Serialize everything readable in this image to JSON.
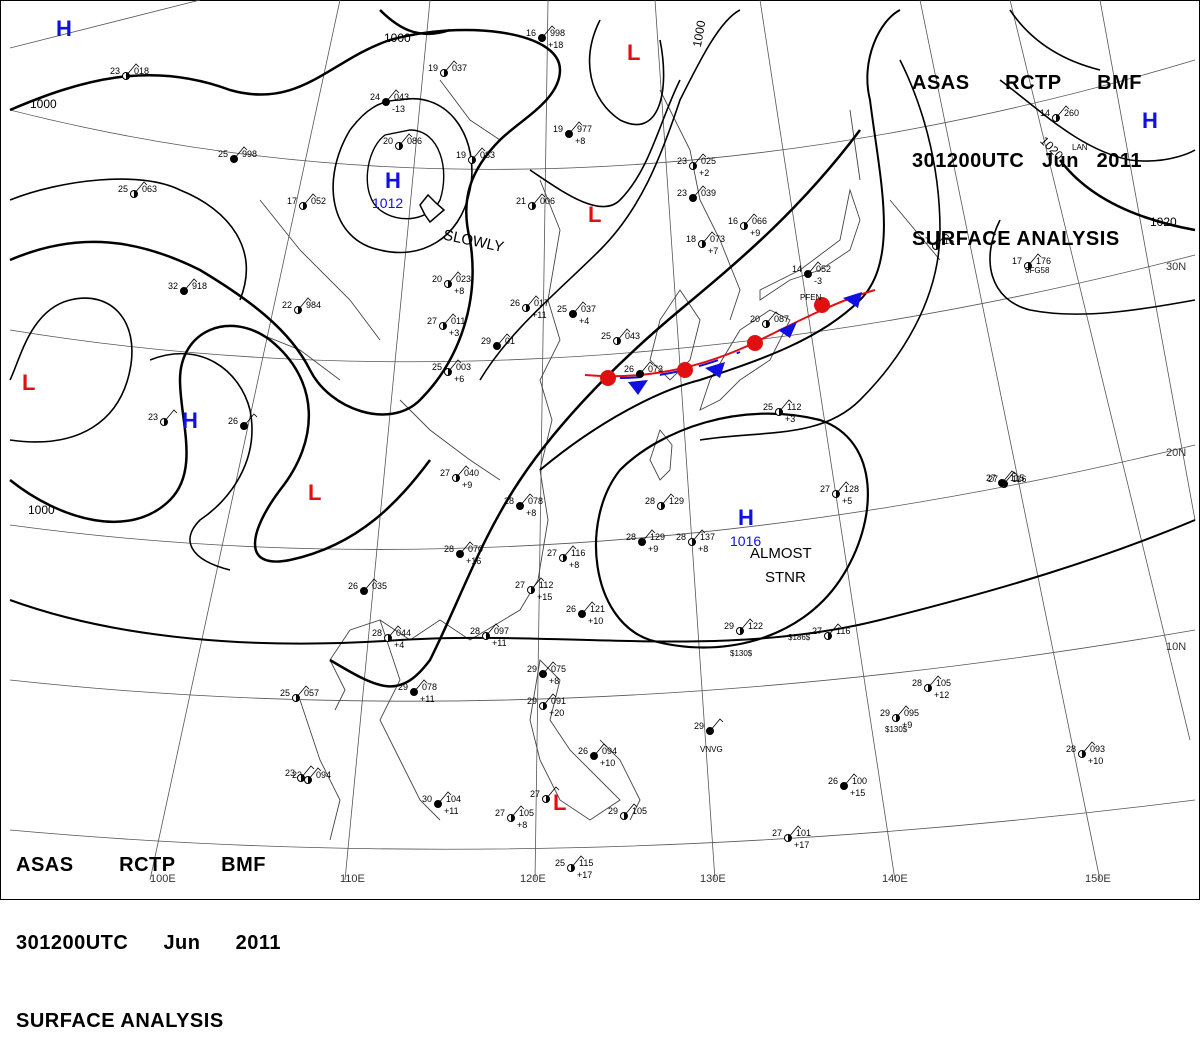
{
  "header": {
    "line1": [
      "ASAS",
      "RCTP",
      "BMF"
    ],
    "line2": [
      "301200UTC",
      "Jun",
      "2011"
    ],
    "line3": "SURFACE ANALYSIS"
  },
  "colors": {
    "high": "#1010e0",
    "low": "#e01010",
    "isobar": "#000000",
    "grid": "#555555"
  },
  "grid": {
    "lon_labels": [
      "110E",
      "120E",
      "130E",
      "140E",
      "150E",
      "100E"
    ],
    "lat_labels": [
      "30N",
      "20N",
      "10N"
    ]
  },
  "pressure_centers": [
    {
      "type": "H",
      "value": "1012"
    },
    {
      "type": "H",
      "value": "1016"
    },
    {
      "type": "H",
      "value": ""
    },
    {
      "type": "H",
      "value": ""
    },
    {
      "type": "H",
      "value": ""
    },
    {
      "type": "L",
      "value": ""
    },
    {
      "type": "L",
      "value": ""
    },
    {
      "type": "L",
      "value": ""
    },
    {
      "type": "L",
      "value": ""
    },
    {
      "type": "L",
      "value": ""
    }
  ],
  "isobar_labels": [
    "1000",
    "1000",
    "1000",
    "1000",
    "1020",
    "1020"
  ],
  "annotations": [
    "SLOWLY",
    "ALMOST",
    "STNR"
  ],
  "stations": [
    {
      "t": "16",
      "p": "998",
      "d": "+18"
    },
    {
      "t": "23",
      "p": "018",
      "d": ""
    },
    {
      "t": "19",
      "p": "037",
      "d": ""
    },
    {
      "t": "24",
      "p": "043",
      "d": "-13"
    },
    {
      "t": "20",
      "p": "086",
      "d": ""
    },
    {
      "t": "19",
      "p": "083",
      "d": ""
    },
    {
      "t": "25",
      "p": "998",
      "d": ""
    },
    {
      "t": "25",
      "p": "063",
      "d": ""
    },
    {
      "t": "17",
      "p": "052",
      "d": ""
    },
    {
      "t": "19",
      "p": "977",
      "d": "+8"
    },
    {
      "t": "21",
      "p": "006",
      "d": ""
    },
    {
      "t": "23",
      "p": "025",
      "d": "+2"
    },
    {
      "t": "23",
      "p": "039",
      "d": ""
    },
    {
      "t": "18",
      "p": "073",
      "d": "+7"
    },
    {
      "t": "16",
      "p": "066",
      "d": "+9"
    },
    {
      "t": "14",
      "p": "052",
      "d": "-3"
    },
    {
      "t": "17",
      "p": "15",
      "d": ""
    },
    {
      "t": "17",
      "p": "176",
      "d": ""
    },
    {
      "t": "32",
      "p": "918",
      "d": ""
    },
    {
      "t": "22",
      "p": "984",
      "d": ""
    },
    {
      "t": "26",
      "p": "017",
      "d": "+11"
    },
    {
      "t": "25",
      "p": "037",
      "d": "+4"
    },
    {
      "t": "20",
      "p": "023",
      "d": "+8"
    },
    {
      "t": "27",
      "p": "011",
      "d": "+3"
    },
    {
      "t": "29",
      "p": "01",
      "d": ""
    },
    {
      "t": "25",
      "p": "043",
      "d": ""
    },
    {
      "t": "25",
      "p": "003",
      "d": "+6"
    },
    {
      "t": "26",
      "p": "073",
      "d": ""
    },
    {
      "t": "20",
      "p": "087",
      "d": ""
    },
    {
      "t": "23",
      "p": "",
      "d": ""
    },
    {
      "t": "26",
      "p": "",
      "d": ""
    },
    {
      "t": "25",
      "p": "112",
      "d": "+3"
    },
    {
      "t": "27",
      "p": "040",
      "d": "+9"
    },
    {
      "t": "28",
      "p": "078",
      "d": "+8"
    },
    {
      "t": "28",
      "p": "129",
      "d": ""
    },
    {
      "t": "28",
      "p": "137",
      "d": "+8"
    },
    {
      "t": "28",
      "p": "129",
      "d": "+9"
    },
    {
      "t": "27",
      "p": "128",
      "d": "+5"
    },
    {
      "t": "27",
      "p": "116",
      "d": ""
    },
    {
      "t": "28",
      "p": "070",
      "d": "+16"
    },
    {
      "t": "27",
      "p": "116",
      "d": "+8"
    },
    {
      "t": "27",
      "p": "112",
      "d": "+15"
    },
    {
      "t": "26",
      "p": "035",
      "d": ""
    },
    {
      "t": "28",
      "p": "044",
      "d": "+4"
    },
    {
      "t": "28",
      "p": "097",
      "d": "+11"
    },
    {
      "t": "26",
      "p": "121",
      "d": "+10"
    },
    {
      "t": "29",
      "p": "122",
      "d": ""
    },
    {
      "t": "27",
      "p": "116",
      "d": ""
    },
    {
      "t": "29",
      "p": "075",
      "d": "+8"
    },
    {
      "t": "29",
      "p": "091",
      "d": "+20"
    },
    {
      "t": "25",
      "p": "057",
      "d": ""
    },
    {
      "t": "29",
      "p": "078",
      "d": "+11"
    },
    {
      "t": "28",
      "p": "105",
      "d": "+12"
    },
    {
      "t": "29",
      "p": "095",
      "d": "+9"
    },
    {
      "t": "29",
      "p": "",
      "d": ""
    },
    {
      "t": "28",
      "p": "093",
      "d": "+10"
    },
    {
      "t": "23",
      "p": "094",
      "d": ""
    },
    {
      "t": "30",
      "p": "104",
      "d": "+11"
    },
    {
      "t": "27",
      "p": "105",
      "d": "+8"
    },
    {
      "t": "27",
      "p": "",
      "d": ""
    },
    {
      "t": "26",
      "p": "100",
      "d": "+15"
    },
    {
      "t": "27",
      "p": "101",
      "d": "+17"
    },
    {
      "t": "25",
      "p": "115",
      "d": "+17"
    },
    {
      "t": "26",
      "p": "094",
      "d": "+10"
    },
    {
      "t": "29",
      "p": "105",
      "d": ""
    },
    {
      "t": "14",
      "p": "260",
      "d": ""
    },
    {
      "t": "27",
      "p": "115",
      "d": ""
    },
    {
      "t": "23",
      "p": "",
      "d": ""
    }
  ],
  "station_codes": [
    "VNVG",
    "$130$",
    "$186$",
    "$130$",
    "3FG58",
    "LAN",
    "PFEN"
  ]
}
